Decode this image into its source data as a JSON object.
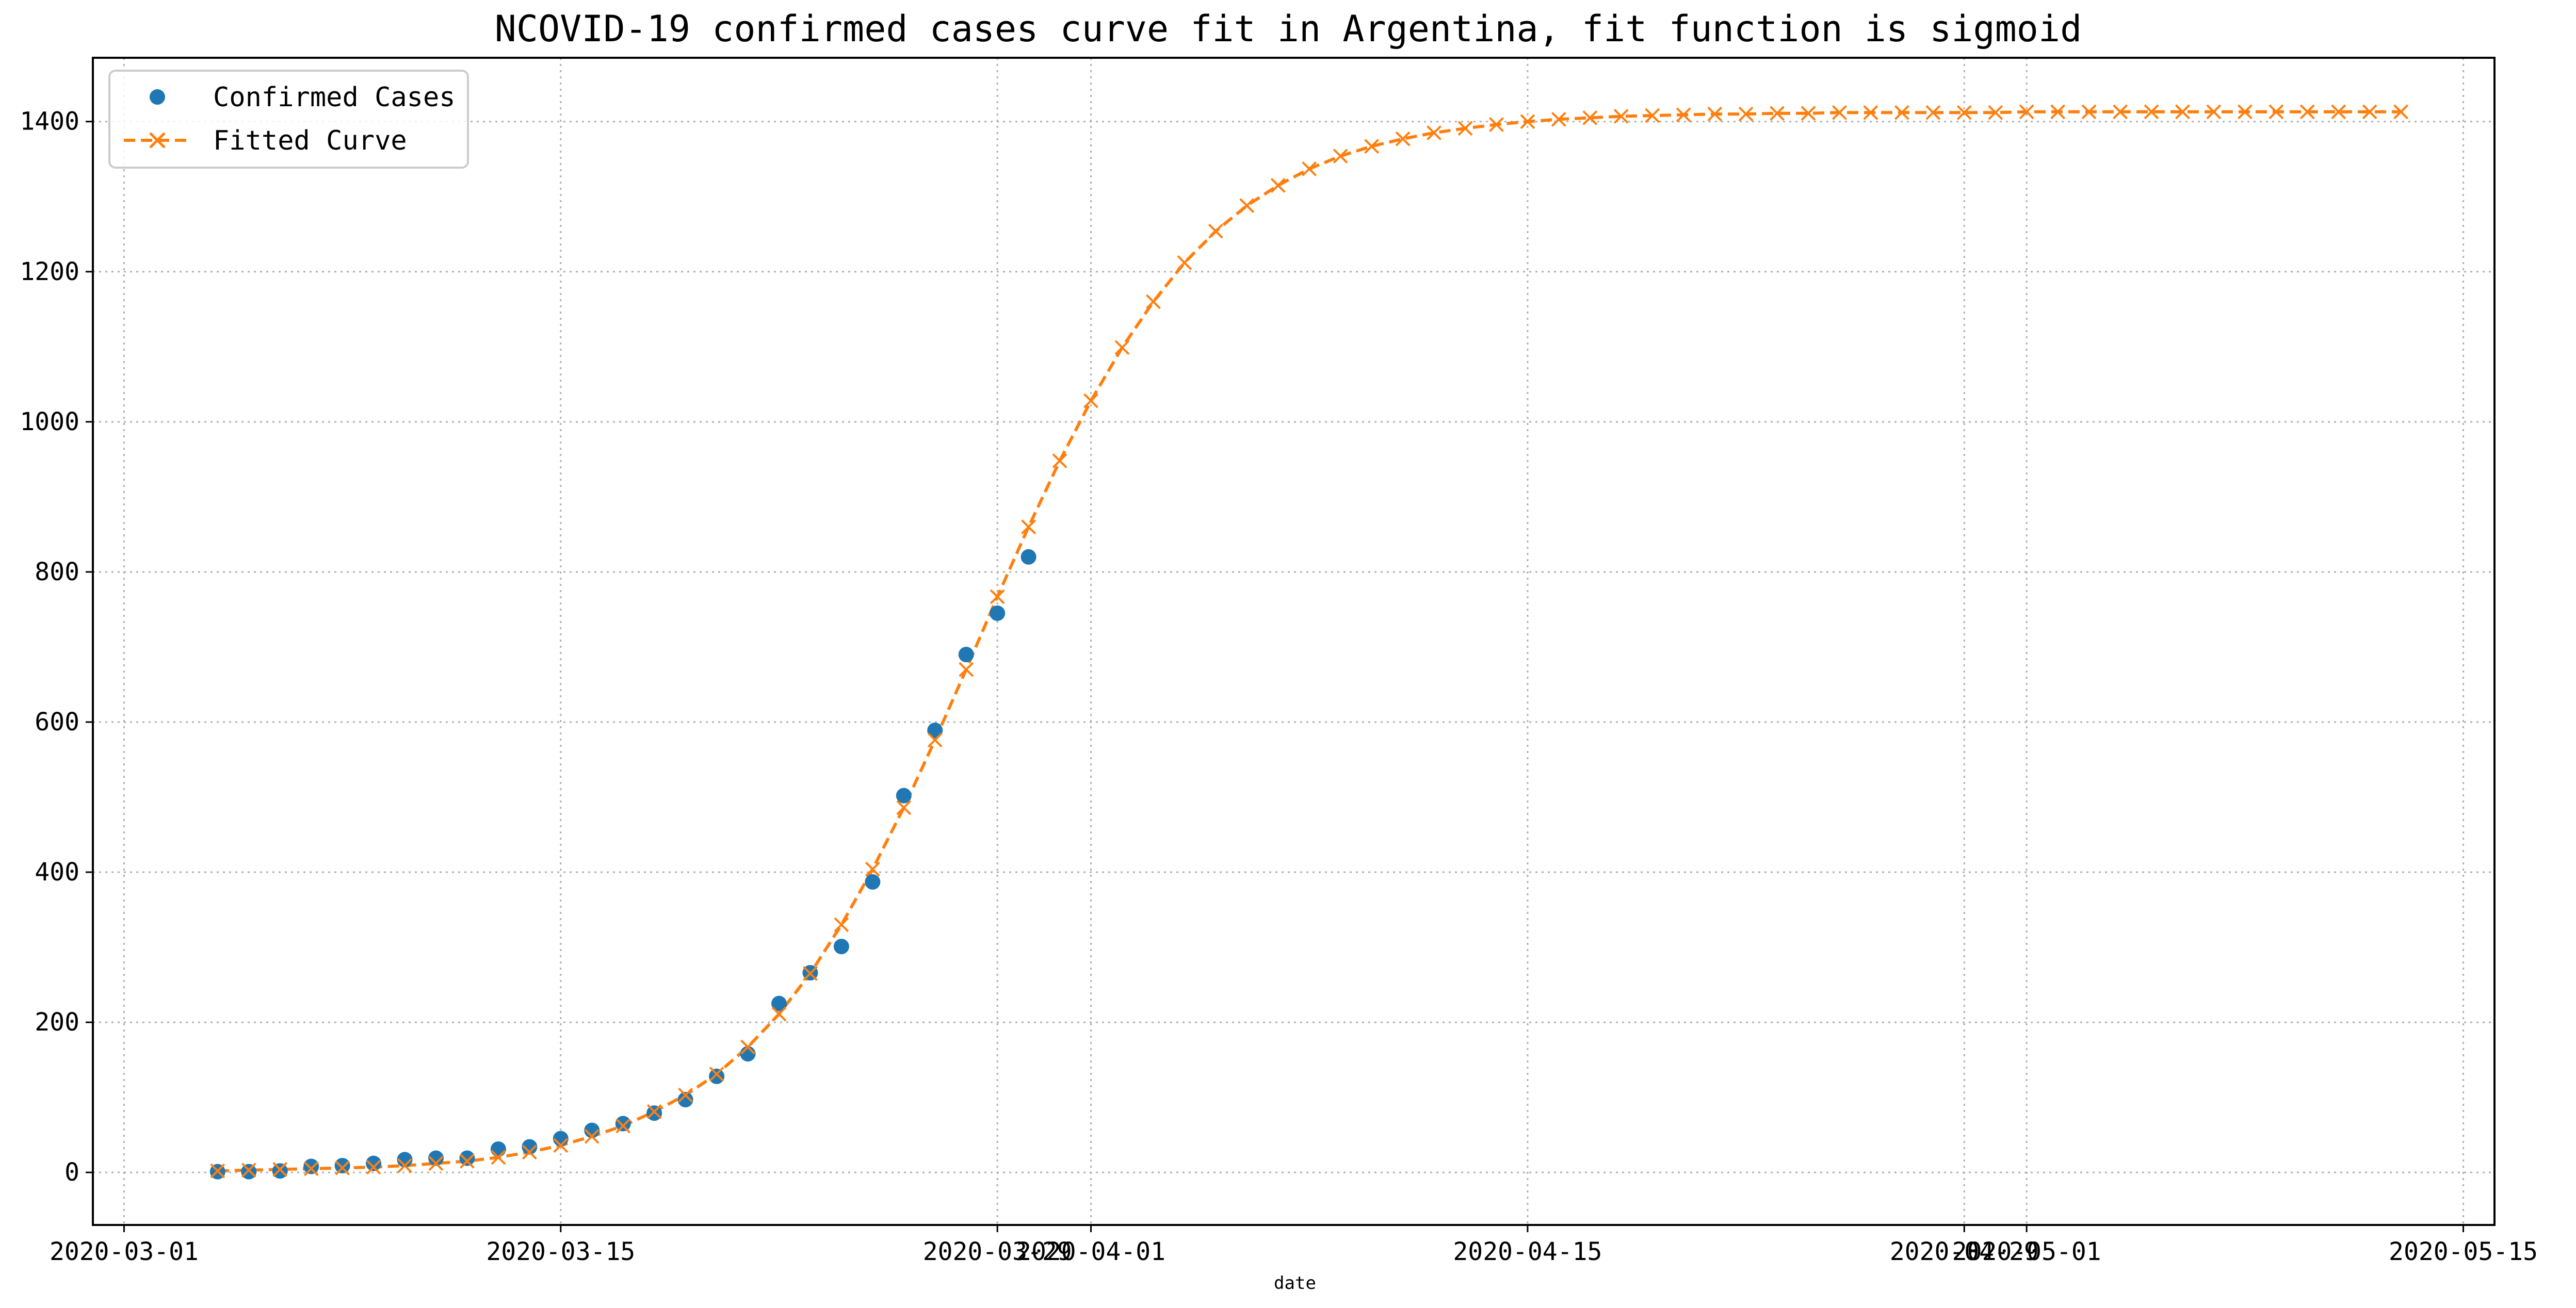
{
  "chart_data": {
    "type": "line",
    "title": "NCOVID-19 confirmed cases curve fit in Argentina, fit function is sigmoid",
    "xlabel": "date",
    "ylabel": "",
    "xlim": [
      "2020-02-29",
      "2020-05-16"
    ],
    "ylim": [
      -70,
      1485
    ],
    "yticks": [
      0,
      200,
      400,
      600,
      800,
      1000,
      1200,
      1400
    ],
    "xticks": [
      "2020-03-01",
      "2020-03-15",
      "2020-03-29",
      "2020-04-01",
      "2020-04-15",
      "2020-04-29",
      "2020-05-01",
      "2020-05-15"
    ],
    "grid": true,
    "legend_position": "top-left",
    "series": [
      {
        "name": "Confirmed Cases",
        "marker": "circle",
        "line": "none",
        "color": "#1f77b4",
        "points": [
          [
            "2020-03-04",
            1
          ],
          [
            "2020-03-05",
            1
          ],
          [
            "2020-03-06",
            2
          ],
          [
            "2020-03-07",
            8
          ],
          [
            "2020-03-08",
            9
          ],
          [
            "2020-03-09",
            12
          ],
          [
            "2020-03-10",
            17
          ],
          [
            "2020-03-11",
            19
          ],
          [
            "2020-03-12",
            19
          ],
          [
            "2020-03-13",
            31
          ],
          [
            "2020-03-14",
            34
          ],
          [
            "2020-03-15",
            45
          ],
          [
            "2020-03-16",
            56
          ],
          [
            "2020-03-17",
            65
          ],
          [
            "2020-03-18",
            79
          ],
          [
            "2020-03-19",
            97
          ],
          [
            "2020-03-20",
            128
          ],
          [
            "2020-03-21",
            158
          ],
          [
            "2020-03-22",
            225
          ],
          [
            "2020-03-23",
            266
          ],
          [
            "2020-03-24",
            301
          ],
          [
            "2020-03-25",
            387
          ],
          [
            "2020-03-26",
            502
          ],
          [
            "2020-03-27",
            589
          ],
          [
            "2020-03-28",
            690
          ],
          [
            "2020-03-29",
            745
          ],
          [
            "2020-03-30",
            820
          ]
        ]
      },
      {
        "name": "Fitted Curve",
        "marker": "x",
        "line": "dashed",
        "color": "#ff7f0e",
        "points": [
          [
            "2020-03-04",
            2
          ],
          [
            "2020-03-05",
            3
          ],
          [
            "2020-03-06",
            4
          ],
          [
            "2020-03-07",
            5
          ],
          [
            "2020-03-08",
            6
          ],
          [
            "2020-03-09",
            7
          ],
          [
            "2020-03-10",
            9
          ],
          [
            "2020-03-11",
            12
          ],
          [
            "2020-03-12",
            15
          ],
          [
            "2020-03-13",
            20
          ],
          [
            "2020-03-14",
            27
          ],
          [
            "2020-03-15",
            36
          ],
          [
            "2020-03-16",
            48
          ],
          [
            "2020-03-17",
            62
          ],
          [
            "2020-03-18",
            81
          ],
          [
            "2020-03-19",
            103
          ],
          [
            "2020-03-20",
            131
          ],
          [
            "2020-03-21",
            167
          ],
          [
            "2020-03-22",
            211
          ],
          [
            "2020-03-23",
            265
          ],
          [
            "2020-03-24",
            330
          ],
          [
            "2020-03-25",
            404
          ],
          [
            "2020-03-26",
            486
          ],
          [
            "2020-03-27",
            576
          ],
          [
            "2020-03-28",
            670
          ],
          [
            "2020-03-29",
            767
          ],
          [
            "2020-03-30",
            860
          ],
          [
            "2020-03-31",
            948
          ],
          [
            "2020-04-01",
            1028
          ],
          [
            "2020-04-02",
            1099
          ],
          [
            "2020-04-03",
            1160
          ],
          [
            "2020-04-04",
            1212
          ],
          [
            "2020-04-05",
            1254
          ],
          [
            "2020-04-06",
            1288
          ],
          [
            "2020-04-07",
            1315
          ],
          [
            "2020-04-08",
            1337
          ],
          [
            "2020-04-09",
            1354
          ],
          [
            "2020-04-10",
            1367
          ],
          [
            "2020-04-11",
            1377
          ],
          [
            "2020-04-12",
            1385
          ],
          [
            "2020-04-13",
            1391
          ],
          [
            "2020-04-14",
            1396
          ],
          [
            "2020-04-15",
            1400
          ],
          [
            "2020-04-16",
            1403
          ],
          [
            "2020-04-17",
            1405
          ],
          [
            "2020-04-18",
            1407
          ],
          [
            "2020-04-19",
            1408
          ],
          [
            "2020-04-20",
            1409
          ],
          [
            "2020-04-21",
            1410
          ],
          [
            "2020-04-22",
            1410
          ],
          [
            "2020-04-23",
            1411
          ],
          [
            "2020-04-24",
            1411
          ],
          [
            "2020-04-25",
            1412
          ],
          [
            "2020-04-26",
            1412
          ],
          [
            "2020-04-27",
            1412
          ],
          [
            "2020-04-28",
            1412
          ],
          [
            "2020-04-29",
            1412
          ],
          [
            "2020-04-30",
            1412
          ],
          [
            "2020-05-01",
            1413
          ],
          [
            "2020-05-02",
            1413
          ],
          [
            "2020-05-03",
            1413
          ],
          [
            "2020-05-04",
            1413
          ],
          [
            "2020-05-05",
            1413
          ],
          [
            "2020-05-06",
            1413
          ],
          [
            "2020-05-07",
            1413
          ],
          [
            "2020-05-08",
            1413
          ],
          [
            "2020-05-09",
            1413
          ],
          [
            "2020-05-10",
            1413
          ],
          [
            "2020-05-11",
            1413
          ],
          [
            "2020-05-12",
            1413
          ],
          [
            "2020-05-13",
            1413
          ]
        ]
      }
    ]
  }
}
